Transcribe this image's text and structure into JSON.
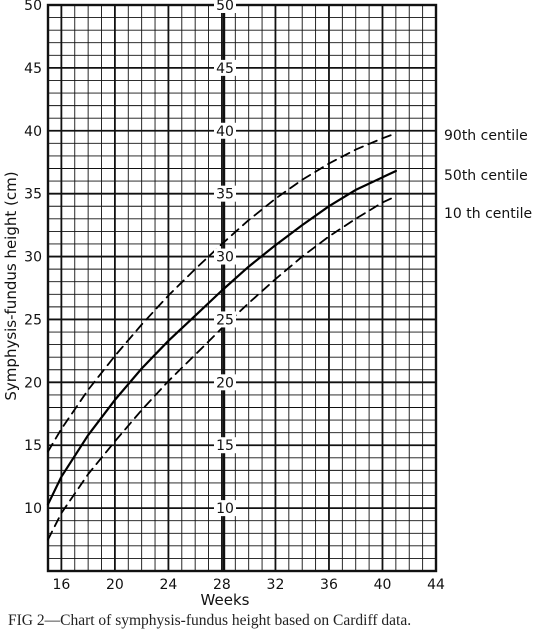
{
  "chart_data": {
    "type": "line",
    "xlabel": "Weeks",
    "ylabel": "Symphysis-fundus height  (cm)",
    "xlim": [
      15,
      44
    ],
    "ylim": [
      5,
      50
    ],
    "x_ticks": [
      16,
      20,
      24,
      28,
      32,
      36,
      40,
      44
    ],
    "y_ticks": [
      10,
      15,
      20,
      25,
      30,
      35,
      40,
      45,
      50
    ],
    "mid_y_ticks": [
      10,
      15,
      20,
      25,
      30,
      35,
      40,
      45,
      50
    ],
    "grid": true,
    "series": [
      {
        "name": "90th centile",
        "style": "dashed",
        "x": [
          15,
          16,
          18,
          20,
          22,
          24,
          26,
          28,
          30,
          32,
          34,
          36,
          38,
          40,
          41
        ],
        "y": [
          14.5,
          16.3,
          19.4,
          22.1,
          24.6,
          26.9,
          29.0,
          31.0,
          32.9,
          34.6,
          36.1,
          37.4,
          38.5,
          39.4,
          39.8
        ]
      },
      {
        "name": "50th centile",
        "style": "solid",
        "x": [
          15,
          16,
          18,
          20,
          22,
          24,
          26,
          28,
          30,
          32,
          34,
          36,
          38,
          40,
          41
        ],
        "y": [
          10.3,
          12.5,
          15.8,
          18.6,
          21.1,
          23.3,
          25.3,
          27.3,
          29.2,
          30.9,
          32.5,
          34.0,
          35.3,
          36.3,
          36.8
        ]
      },
      {
        "name": "10 th centile",
        "style": "dashed",
        "x": [
          15,
          16,
          18,
          20,
          22,
          24,
          26,
          28,
          30,
          32,
          34,
          36,
          38,
          40,
          41
        ],
        "y": [
          7.5,
          9.6,
          12.7,
          15.3,
          17.8,
          20.1,
          22.2,
          24.3,
          26.3,
          28.2,
          30.0,
          31.6,
          33.0,
          34.3,
          34.8
        ]
      }
    ],
    "labels": {
      "c90": "90th centile",
      "c50": "50th centile",
      "c10": "10 th centile"
    }
  },
  "caption": {
    "fig": "FIG 2",
    "text": "—Chart of symphysis-fundus height based on Cardiff data."
  }
}
